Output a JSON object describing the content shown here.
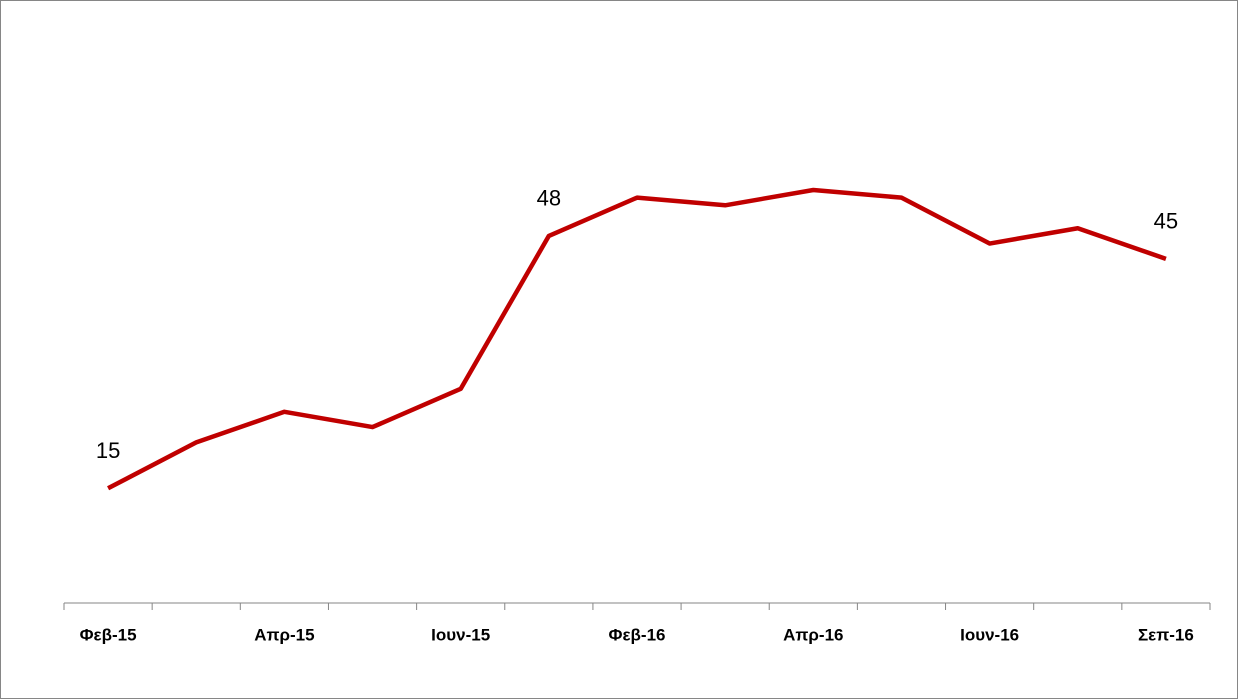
{
  "chart_data": {
    "type": "line",
    "categories": [
      "Φεβ-15",
      null,
      "Απρ-15",
      null,
      "Ιουν-15",
      null,
      "Φεβ-16",
      null,
      "Απρ-16",
      null,
      "Ιουν-16",
      null,
      "Σεπ-16"
    ],
    "series": [
      {
        "color": "#c00000",
        "values": [
          15,
          21,
          25,
          23,
          28,
          48,
          53,
          52,
          54,
          53,
          47,
          49,
          45
        ],
        "value_labels": [
          "15",
          null,
          null,
          null,
          null,
          "48",
          null,
          null,
          null,
          null,
          null,
          null,
          "45"
        ]
      }
    ]
  }
}
